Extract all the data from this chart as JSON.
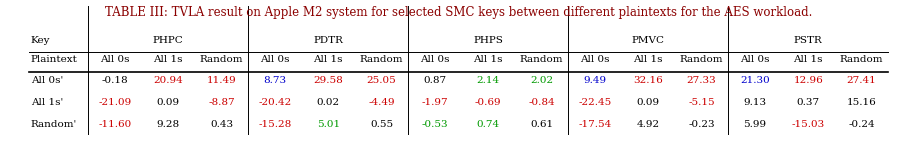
{
  "title": "TABLE III: TVLA result on Apple M2 system for selected SMC keys between different plaintexts for the AES workload.",
  "title_color": "#8B0000",
  "col_groups": [
    "PHPC",
    "PDTR",
    "PHPS",
    "PMVC",
    "PSTR"
  ],
  "sub_cols": [
    "All 0s",
    "All 1s",
    "Random"
  ],
  "row_labels": [
    "Key",
    "Plaintext",
    "All 0s'",
    "All 1s'",
    "Random'"
  ],
  "data": {
    "All 0s'": {
      "PHPC": [
        "-0.18",
        "20.94",
        "11.49"
      ],
      "PDTR": [
        "8.73",
        "29.58",
        "25.05"
      ],
      "PHPS": [
        "0.87",
        "2.14",
        "2.02"
      ],
      "PMVC": [
        "9.49",
        "32.16",
        "27.33"
      ],
      "PSTR": [
        "21.30",
        "12.96",
        "27.41"
      ]
    },
    "All 1s'": {
      "PHPC": [
        "-21.09",
        "0.09",
        "-8.87"
      ],
      "PDTR": [
        "-20.42",
        "0.02",
        "-4.49"
      ],
      "PHPS": [
        "-1.97",
        "-0.69",
        "-0.84"
      ],
      "PMVC": [
        "-22.45",
        "0.09",
        "-5.15"
      ],
      "PSTR": [
        "9.13",
        "0.37",
        "15.16"
      ]
    },
    "Random'": {
      "PHPC": [
        "-11.60",
        "9.28",
        "0.43"
      ],
      "PDTR": [
        "-15.28",
        "5.01",
        "0.55"
      ],
      "PHPS": [
        "-0.53",
        "0.74",
        "0.61"
      ],
      "PMVC": [
        "-17.54",
        "4.92",
        "-0.23"
      ],
      "PSTR": [
        "5.99",
        "-15.03",
        "-0.24"
      ]
    }
  },
  "colors": {
    "All 0s'": {
      "PHPC": [
        "#000000",
        "#cc0000",
        "#cc0000"
      ],
      "PDTR": [
        "#0000cc",
        "#cc0000",
        "#cc0000"
      ],
      "PHPS": [
        "#000000",
        "#009900",
        "#009900"
      ],
      "PMVC": [
        "#0000cc",
        "#cc0000",
        "#cc0000"
      ],
      "PSTR": [
        "#0000cc",
        "#cc0000",
        "#cc0000"
      ]
    },
    "All 1s'": {
      "PHPC": [
        "#cc0000",
        "#000000",
        "#cc0000"
      ],
      "PDTR": [
        "#cc0000",
        "#000000",
        "#cc0000"
      ],
      "PHPS": [
        "#cc0000",
        "#cc0000",
        "#cc0000"
      ],
      "PMVC": [
        "#cc0000",
        "#000000",
        "#cc0000"
      ],
      "PSTR": [
        "#000000",
        "#000000",
        "#000000"
      ]
    },
    "Random'": {
      "PHPC": [
        "#cc0000",
        "#000000",
        "#000000"
      ],
      "PDTR": [
        "#cc0000",
        "#009900",
        "#000000"
      ],
      "PHPS": [
        "#009900",
        "#009900",
        "#000000"
      ],
      "PMVC": [
        "#cc0000",
        "#000000",
        "#000000"
      ],
      "PSTR": [
        "#000000",
        "#cc0000",
        "#000000"
      ]
    }
  },
  "background_color": "#ffffff",
  "fontsize": 7.5,
  "title_fontsize": 8.5
}
